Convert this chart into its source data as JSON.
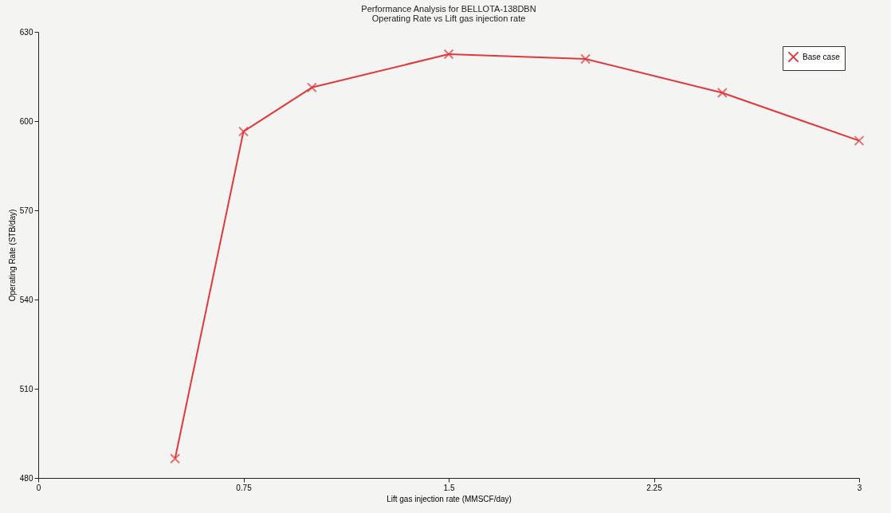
{
  "chart_data": {
    "type": "line",
    "title": "Performance Analysis for BELLOTA-138DBN",
    "subtitle": "Operating Rate vs Lift gas injection rate",
    "xlabel": "Lift gas injection rate (MMSCF/day)",
    "ylabel": "Operating Rate (STB/day)",
    "x": [
      0.5,
      0.75,
      1.0,
      1.5,
      2.0,
      2.5,
      3.0
    ],
    "series": [
      {
        "name": "Base case",
        "color": "#e0383c",
        "values": [
          486.5,
          596.5,
          611.3,
          622.5,
          620.9,
          609.5,
          593.4
        ]
      }
    ],
    "xlim": [
      0,
      3
    ],
    "xticks": [
      0,
      0.75,
      1.5,
      2.25,
      3
    ],
    "ylim": [
      480,
      630
    ],
    "yticks": [
      480,
      510,
      540,
      570,
      600,
      630
    ],
    "grid": false,
    "legend": "top right",
    "marker": "cross",
    "line_style": "solid"
  }
}
